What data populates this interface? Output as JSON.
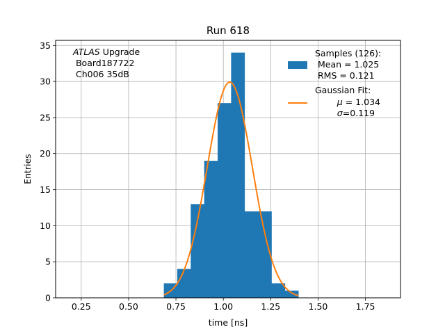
{
  "chart_data": {
    "type": "bar",
    "title": "Run 618",
    "xlabel": "time [ns]",
    "ylabel": "Entries",
    "xlim": [
      0.115,
      1.935
    ],
    "ylim": [
      0,
      35.7
    ],
    "xticks": [
      0.25,
      0.5,
      0.75,
      1.0,
      1.25,
      1.5,
      1.75
    ],
    "xtick_labels": [
      "0.25",
      "0.50",
      "0.75",
      "1.00",
      "1.25",
      "1.50",
      "1.75"
    ],
    "yticks": [
      0,
      5,
      10,
      15,
      20,
      25,
      30,
      35
    ],
    "ytick_labels": [
      "0",
      "5",
      "10",
      "15",
      "20",
      "25",
      "30",
      "35"
    ],
    "grid": true,
    "legend_position": "top-right",
    "annotation": {
      "italic": "ATLAS",
      "line1_rest": " Upgrade",
      "line2": " Board187722",
      "line3": " Ch006 35dB"
    },
    "histogram": {
      "name": "Samples (126):",
      "color": "#1f77b4",
      "bin_edges": [
        0.686,
        0.757,
        0.828,
        0.899,
        0.97,
        1.041,
        1.112,
        1.183,
        1.254,
        1.325,
        1.396
      ],
      "counts": [
        2,
        4,
        13,
        19,
        27,
        34,
        12,
        12,
        2,
        1
      ],
      "legend_lines": [
        " Mean = 1.025",
        " RMS = 0.121"
      ]
    },
    "fit": {
      "name": "Gaussian Fit:",
      "color": "#ff7f0e",
      "mu": 1.034,
      "sigma": 0.119,
      "amplitude": 29.9,
      "x_range": [
        0.686,
        1.396
      ],
      "legend_line_mu_prefix": " μ",
      "legend_line_mu_value": " = 1.034",
      "legend_line_sigma_prefix": " σ",
      "legend_line_sigma_value": "=0.119"
    }
  }
}
